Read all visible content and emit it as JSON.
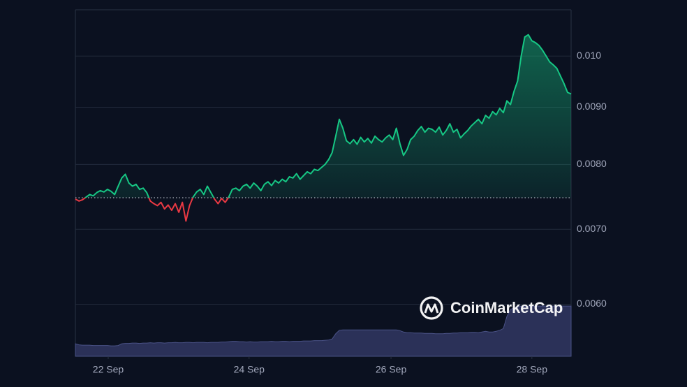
{
  "chart_data": {
    "type": "line",
    "log_scale": true,
    "grid": true,
    "background": "#0b1120",
    "down_color": "#ea3943",
    "baseline": 0.00747,
    "watermark": "CoinMarketCap",
    "xlim": [
      0,
      139
    ],
    "xticks": [
      {
        "value": 9.2,
        "label": "22 Sep"
      },
      {
        "value": 48.7,
        "label": "24 Sep"
      },
      {
        "value": 88.5,
        "label": "26 Sep"
      },
      {
        "value": 128,
        "label": "28 Sep"
      }
    ],
    "ylim": [
      0.00539,
      0.011
    ],
    "yticks": [
      {
        "value": 0.006,
        "label": "0.0060"
      },
      {
        "value": 0.007,
        "label": "0.0070"
      },
      {
        "value": 0.008,
        "label": "0.0080"
      },
      {
        "value": 0.009,
        "label": "0.0090"
      },
      {
        "value": 0.01,
        "label": "0.010"
      }
    ],
    "y2lim": [
      0,
      100
    ],
    "series": [
      {
        "color": "#16c784",
        "values": [
          0.00745,
          0.00742,
          0.00744,
          0.00748,
          0.00752,
          0.0075,
          0.00755,
          0.00758,
          0.00756,
          0.0076,
          0.00757,
          0.00752,
          0.00765,
          0.00778,
          0.00784,
          0.0077,
          0.00765,
          0.00768,
          0.0076,
          0.00762,
          0.00755,
          0.00742,
          0.00738,
          0.00735,
          0.0074,
          0.0073,
          0.00736,
          0.00728,
          0.00738,
          0.00725,
          0.0074,
          0.00712,
          0.00735,
          0.00748,
          0.00756,
          0.0076,
          0.00752,
          0.00765,
          0.00755,
          0.00745,
          0.00738,
          0.00746,
          0.0074,
          0.00748,
          0.0076,
          0.00762,
          0.00758,
          0.00765,
          0.00768,
          0.00762,
          0.0077,
          0.00765,
          0.00758,
          0.00768,
          0.00772,
          0.00766,
          0.00774,
          0.0077,
          0.00776,
          0.00772,
          0.0078,
          0.00778,
          0.00785,
          0.00776,
          0.00782,
          0.00788,
          0.00785,
          0.00792,
          0.0079,
          0.00795,
          0.008,
          0.00808,
          0.0082,
          0.00848,
          0.00878,
          0.00862,
          0.0084,
          0.00835,
          0.00842,
          0.00834,
          0.00846,
          0.00838,
          0.00844,
          0.00836,
          0.00848,
          0.00842,
          0.00838,
          0.00845,
          0.0085,
          0.00842,
          0.00862,
          0.00835,
          0.00815,
          0.00825,
          0.00842,
          0.00848,
          0.00858,
          0.00865,
          0.00855,
          0.00862,
          0.0086,
          0.00855,
          0.00864,
          0.0085,
          0.00858,
          0.0087,
          0.00855,
          0.0086,
          0.00845,
          0.00852,
          0.00858,
          0.00866,
          0.00872,
          0.00878,
          0.0087,
          0.00885,
          0.0088,
          0.00892,
          0.00886,
          0.00898,
          0.0089,
          0.00912,
          0.00905,
          0.0093,
          0.0095,
          0.01,
          0.0104,
          0.01045,
          0.01032,
          0.01028,
          0.01022,
          0.01012,
          0.01,
          0.00988,
          0.00982,
          0.00975,
          0.0096,
          0.00945,
          0.00928,
          0.00925
        ]
      },
      {
        "color": "#2b3158",
        "axis": "y2",
        "values": [
          3.6,
          3.3,
          3.2,
          3.2,
          3.2,
          3.1,
          3.1,
          3.1,
          3.1,
          3.1,
          3.0,
          3.0,
          3.1,
          3.6,
          3.7,
          3.7,
          3.8,
          3.8,
          3.7,
          3.8,
          3.8,
          3.9,
          3.8,
          3.9,
          3.9,
          3.8,
          3.9,
          3.9,
          4.0,
          3.9,
          3.9,
          4.0,
          4.0,
          3.9,
          4.0,
          4.0,
          4.0,
          3.9,
          4.0,
          4.0,
          4.0,
          4.1,
          4.1,
          4.2,
          4.3,
          4.3,
          4.2,
          4.2,
          4.1,
          4.2,
          4.1,
          4.1,
          4.2,
          4.2,
          4.2,
          4.3,
          4.2,
          4.2,
          4.3,
          4.3,
          4.2,
          4.3,
          4.3,
          4.3,
          4.4,
          4.4,
          4.4,
          4.5,
          4.5,
          4.5,
          4.6,
          4.7,
          5.0,
          6.5,
          7.5,
          7.6,
          7.6,
          7.6,
          7.6,
          7.6,
          7.6,
          7.6,
          7.6,
          7.6,
          7.6,
          7.6,
          7.6,
          7.6,
          7.6,
          7.6,
          7.6,
          7.4,
          7.0,
          6.8,
          6.8,
          6.7,
          6.7,
          6.7,
          6.6,
          6.6,
          6.6,
          6.5,
          6.5,
          6.5,
          6.6,
          6.6,
          6.7,
          6.7,
          6.8,
          6.8,
          6.8,
          6.9,
          6.9,
          6.8,
          7.0,
          7.2,
          7.0,
          7.0,
          7.2,
          7.5,
          8.0,
          11.5,
          13.5,
          14.0,
          14.3,
          14.5,
          14.5,
          14.5,
          14.5,
          14.5,
          14.5,
          14.5,
          14.5,
          14.5,
          14.5,
          14.5,
          14.5,
          14.5,
          14.5,
          14.5
        ]
      }
    ]
  }
}
